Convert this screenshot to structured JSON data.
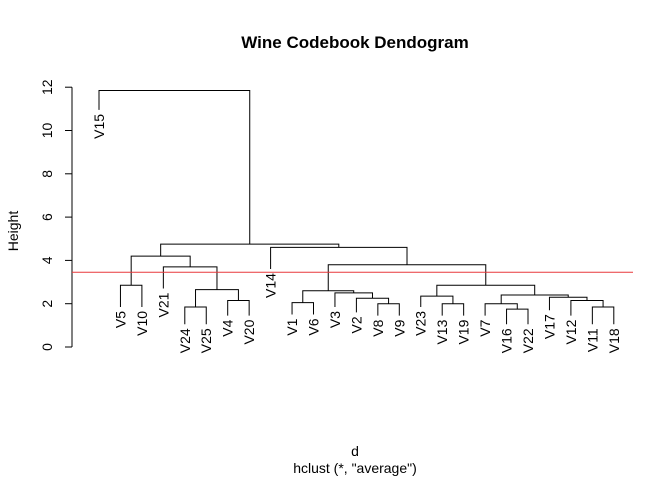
{
  "chart_data": {
    "type": "dendrogram",
    "title": "Wine Codebook Dendogram",
    "xlabel": "d",
    "sublabel": "hclust (*, \"average\")",
    "ylabel": "Height",
    "ylim": [
      0,
      12
    ],
    "yticks": [
      0,
      2,
      4,
      6,
      8,
      10,
      12
    ],
    "cut_height": 3.45,
    "cut_color": "#e8383b",
    "leaf_order": [
      "V15",
      "V5",
      "V10",
      "V21",
      "V24",
      "V25",
      "V4",
      "V20",
      "V14",
      "V1",
      "V6",
      "V3",
      "V2",
      "V8",
      "V9",
      "V23",
      "V13",
      "V19",
      "V7",
      "V16",
      "V22",
      "V17",
      "V12",
      "V11",
      "V18"
    ],
    "merges": [
      {
        "a": "V11",
        "b": "V18",
        "height": 1.85
      },
      {
        "a": "V12",
        "b": 1,
        "height": 2.15
      },
      {
        "a": "V17",
        "b": 2,
        "height": 2.3
      },
      {
        "a": "V16",
        "b": "V22",
        "height": 1.75
      },
      {
        "a": "V7",
        "b": 4,
        "height": 2.0
      },
      {
        "a": 5,
        "b": 3,
        "height": 2.4
      },
      {
        "a": "V13",
        "b": "V19",
        "height": 2.0
      },
      {
        "a": "V23",
        "b": 7,
        "height": 2.35
      },
      {
        "a": 8,
        "b": 6,
        "height": 2.85
      },
      {
        "a": "V8",
        "b": "V9",
        "height": 2.0
      },
      {
        "a": "V2",
        "b": 10,
        "height": 2.25
      },
      {
        "a": "V3",
        "b": 11,
        "height": 2.5
      },
      {
        "a": "V1",
        "b": "V6",
        "height": 2.05
      },
      {
        "a": 13,
        "b": 12,
        "height": 2.6
      },
      {
        "a": 14,
        "b": 9,
        "height": 3.8
      },
      {
        "a": "V14",
        "b": 15,
        "height": 4.6
      },
      {
        "a": "V4",
        "b": "V20",
        "height": 2.15
      },
      {
        "a": "V24",
        "b": "V25",
        "height": 1.85
      },
      {
        "a": 18,
        "b": 17,
        "height": 2.65
      },
      {
        "a": "V21",
        "b": 19,
        "height": 3.7
      },
      {
        "a": "V5",
        "b": "V10",
        "height": 2.85
      },
      {
        "a": 21,
        "b": 20,
        "height": 4.2
      },
      {
        "a": 22,
        "b": 16,
        "height": 4.75
      },
      {
        "a": "V15",
        "b": 23,
        "height": 11.85
      }
    ],
    "leaf_heights": {
      "V15": 10.95,
      "V5": 1.85,
      "V10": 1.85,
      "V21": 2.7,
      "V24": 1.05,
      "V25": 1.05,
      "V4": 1.45,
      "V20": 1.45,
      "V14": 3.6,
      "V1": 1.5,
      "V6": 1.5,
      "V3": 1.85,
      "V2": 1.6,
      "V8": 1.45,
      "V9": 1.45,
      "V23": 1.85,
      "V13": 1.45,
      "V19": 1.45,
      "V7": 1.45,
      "V16": 1.05,
      "V22": 1.05,
      "V17": 1.7,
      "V12": 1.45,
      "V11": 1.05,
      "V18": 1.05
    }
  }
}
